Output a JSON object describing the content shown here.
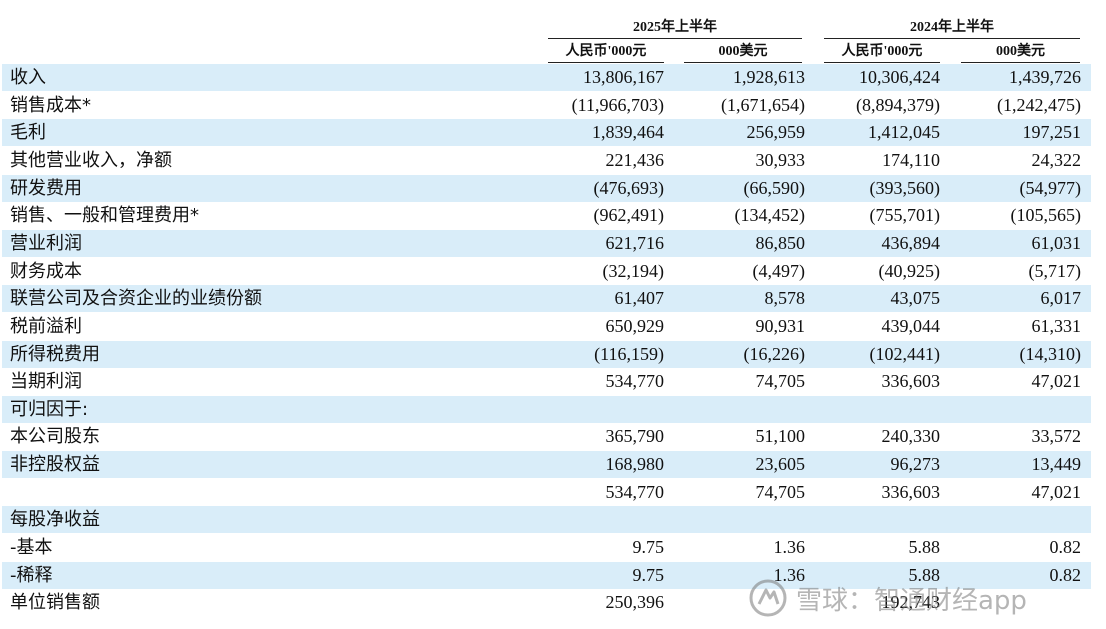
{
  "header": {
    "periods": [
      "2025年上半年",
      "2024年上半年"
    ],
    "units": [
      "人民币'000元",
      "000美元",
      "人民币'000元",
      "000美元"
    ]
  },
  "rows": [
    {
      "label": "收入",
      "values": [
        "13,806,167",
        "1,928,613",
        "10,306,424",
        "1,439,726"
      ],
      "shaded": true
    },
    {
      "label": "销售成本*",
      "values": [
        "(11,966,703)",
        "(1,671,654)",
        "(8,894,379)",
        "(1,242,475)"
      ],
      "shaded": false
    },
    {
      "label": "毛利",
      "values": [
        "1,839,464",
        "256,959",
        "1,412,045",
        "197,251"
      ],
      "shaded": true
    },
    {
      "label": "其他营业收入，净额",
      "values": [
        "221,436",
        "30,933",
        "174,110",
        "24,322"
      ],
      "shaded": false
    },
    {
      "label": "研发费用",
      "values": [
        "(476,693)",
        "(66,590)",
        "(393,560)",
        "(54,977)"
      ],
      "shaded": true
    },
    {
      "label": "销售、一般和管理费用*",
      "values": [
        "(962,491)",
        "(134,452)",
        "(755,701)",
        "(105,565)"
      ],
      "shaded": false
    },
    {
      "label": "营业利润",
      "values": [
        "621,716",
        "86,850",
        "436,894",
        "61,031"
      ],
      "shaded": true
    },
    {
      "label": "财务成本",
      "values": [
        "(32,194)",
        "(4,497)",
        "(40,925)",
        "(5,717)"
      ],
      "shaded": false
    },
    {
      "label": "联营公司及合资企业的业绩份额",
      "values": [
        "61,407",
        "8,578",
        "43,075",
        "6,017"
      ],
      "shaded": true
    },
    {
      "label": "税前溢利",
      "values": [
        "650,929",
        "90,931",
        "439,044",
        "61,331"
      ],
      "shaded": false
    },
    {
      "label": "所得税费用",
      "values": [
        "(116,159)",
        "(16,226)",
        "(102,441)",
        "(14,310)"
      ],
      "shaded": true
    },
    {
      "label": "当期利润",
      "values": [
        "534,770",
        "74,705",
        "336,603",
        "47,021"
      ],
      "shaded": false
    },
    {
      "label": "可归因于:",
      "values": [
        "",
        "",
        "",
        ""
      ],
      "shaded": true
    },
    {
      "label": "本公司股东",
      "values": [
        "365,790",
        "51,100",
        "240,330",
        "33,572"
      ],
      "shaded": false
    },
    {
      "label": "非控股权益",
      "values": [
        "168,980",
        "23,605",
        "96,273",
        "13,449"
      ],
      "shaded": true
    },
    {
      "label": "",
      "values": [
        "534,770",
        "74,705",
        "336,603",
        "47,021"
      ],
      "shaded": false
    },
    {
      "label": "每股净收益",
      "values": [
        "",
        "",
        "",
        ""
      ],
      "shaded": true
    },
    {
      "label": "-基本",
      "values": [
        "9.75",
        "1.36",
        "5.88",
        "0.82"
      ],
      "shaded": false
    },
    {
      "label": "-稀释",
      "values": [
        "9.75",
        "1.36",
        "5.88",
        "0.82"
      ],
      "shaded": true
    },
    {
      "label": "单位销售额",
      "values": [
        "250,396",
        "",
        "192,743",
        ""
      ],
      "shaded": false
    }
  ],
  "watermark": {
    "text": "雪球：智通财经app",
    "icon": "snowball-logo-icon",
    "color": "#7a7a7a"
  }
}
